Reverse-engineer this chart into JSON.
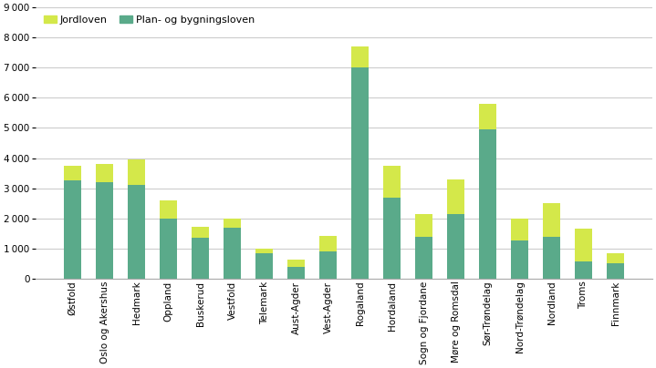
{
  "categories": [
    "Østfold",
    "Oslo og Akershus",
    "Hedmark",
    "Oppland",
    "Buskerud",
    "Vestfold",
    "Telemark",
    "Aust-Agder",
    "Vest-Agder",
    "Rogaland",
    "Hordaland",
    "Sogn og Fjordane",
    "Møre og Romsdal",
    "Sør-Trøndelag",
    "Nord-Trøndelag",
    "Nordland",
    "Troms",
    "Finnmark"
  ],
  "plan_bygningsloven": [
    3250,
    3200,
    3100,
    2000,
    1350,
    1700,
    850,
    400,
    900,
    7000,
    2700,
    1400,
    2150,
    4950,
    1250,
    1400,
    560,
    500
  ],
  "jordloven": [
    500,
    600,
    850,
    580,
    380,
    280,
    150,
    220,
    530,
    700,
    1050,
    750,
    1150,
    850,
    750,
    1100,
    1100,
    350
  ],
  "color_plan": "#5aaa8a",
  "color_jord": "#d4e84a",
  "ylim": [
    0,
    9000
  ],
  "yticks": [
    0,
    1000,
    2000,
    3000,
    4000,
    5000,
    6000,
    7000,
    8000,
    9000
  ],
  "legend_jordloven": "Jordloven",
  "legend_plan": "Plan- og bygningsloven",
  "background_color": "#ffffff",
  "grid_color": "#cccccc"
}
